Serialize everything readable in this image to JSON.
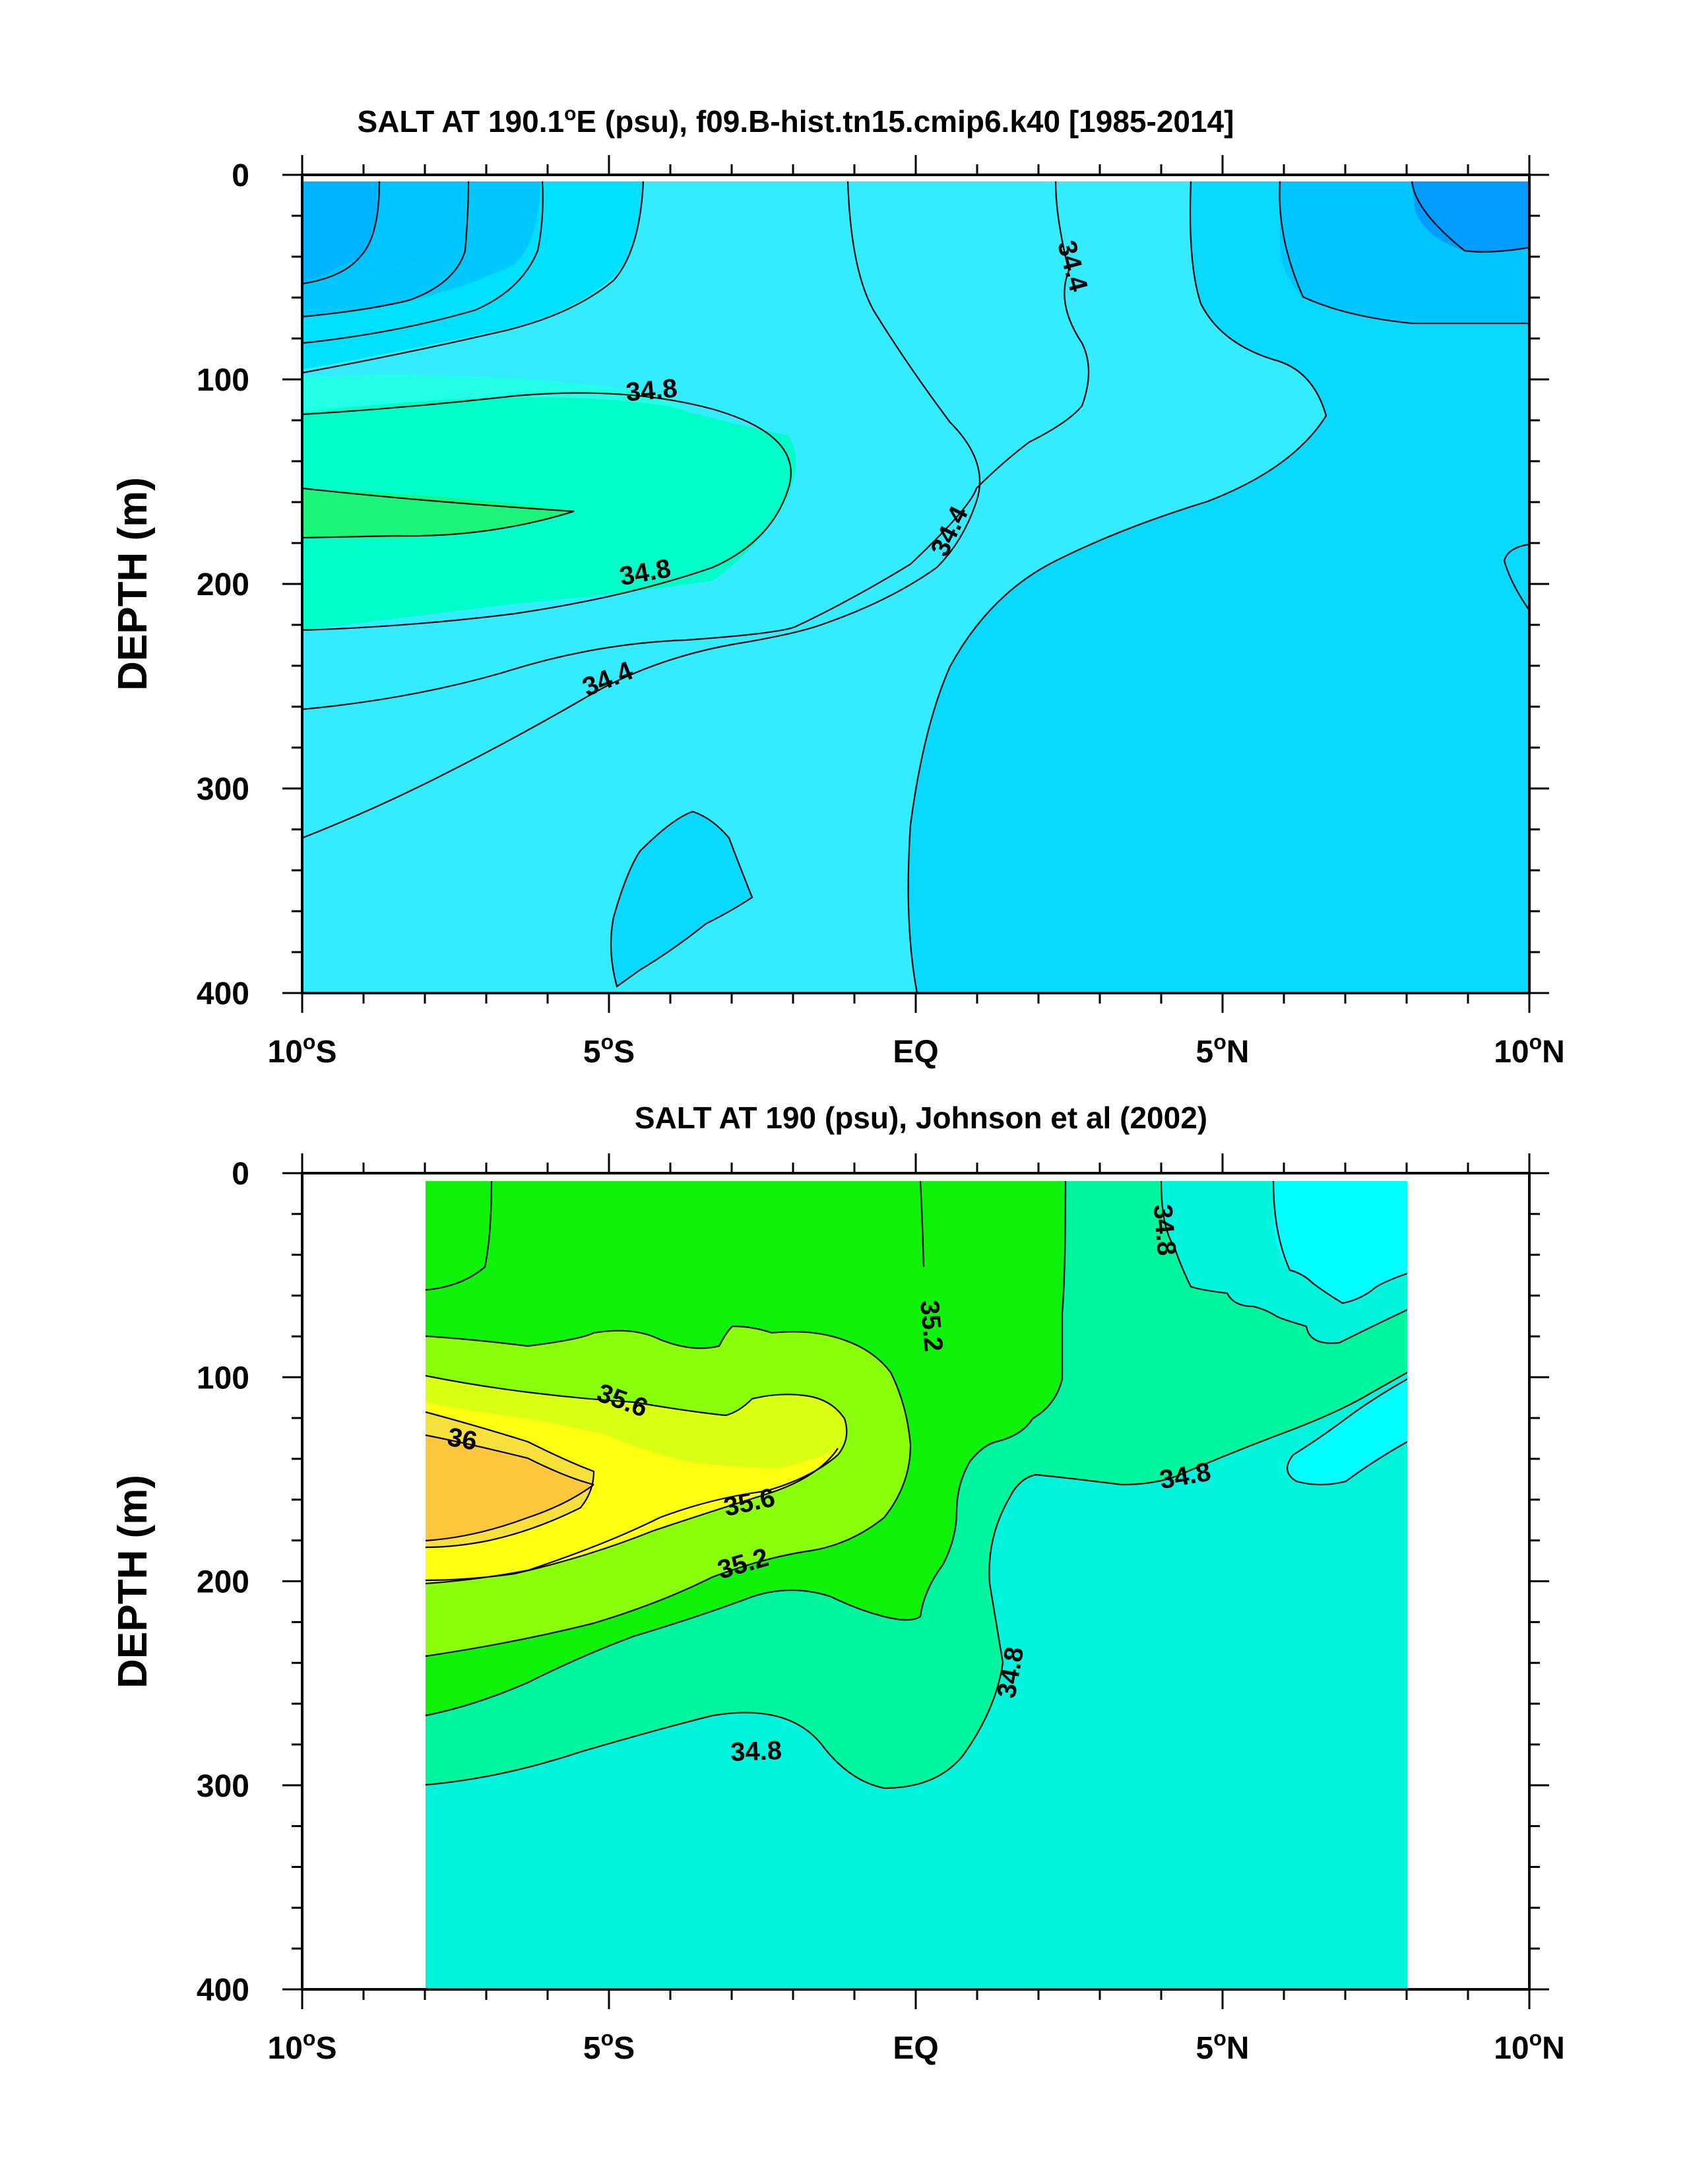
{
  "chart_data": [
    {
      "type": "contour",
      "title_main": "SALT AT 190.1",
      "title_rest": "E (psu), f09.B-hist.tn15.cmip6.k40 [1985-2014]",
      "title_degree": "o",
      "ylabel": "DEPTH (m)",
      "xlim": [
        -10,
        10
      ],
      "ylim": [
        400,
        0
      ],
      "yticks": [
        "0",
        "100",
        "200",
        "300",
        "400"
      ],
      "xticks": [
        {
          "num": "10",
          "sup": "o",
          "hem": "S"
        },
        {
          "num": "5",
          "sup": "o",
          "hem": "S"
        },
        {
          "num": "EQ",
          "sup": "",
          "hem": ""
        },
        {
          "num": "5",
          "sup": "o",
          "hem": "N"
        },
        {
          "num": "10",
          "sup": "o",
          "hem": "N"
        }
      ],
      "data_extent": [
        -10,
        10
      ],
      "contour_levels": [
        34.0,
        34.2,
        34.4,
        34.6,
        34.8,
        35.0
      ],
      "contour_labels": [
        {
          "text": "34.8",
          "lon": -4.3,
          "depth": 107,
          "angle": -5
        },
        {
          "text": "34.8",
          "lon": -4.4,
          "depth": 196,
          "angle": -10
        },
        {
          "text": "34.4",
          "lon": -5.0,
          "depth": 248,
          "angle": -22
        },
        {
          "text": "34.4",
          "lon": 0.6,
          "depth": 175,
          "angle": -64
        },
        {
          "text": "34.4",
          "lon": 2.5,
          "depth": 45,
          "angle": 75
        }
      ]
    },
    {
      "type": "contour",
      "title_main": "SALT AT 190 (psu), Johnson et al (2002)",
      "title_rest": "",
      "title_degree": "",
      "ylabel": "DEPTH (m)",
      "xlim": [
        -10,
        10
      ],
      "ylim": [
        400,
        0
      ],
      "yticks": [
        "0",
        "100",
        "200",
        "300",
        "400"
      ],
      "xticks": [
        {
          "num": "10",
          "sup": "o",
          "hem": "S"
        },
        {
          "num": "5",
          "sup": "o",
          "hem": "S"
        },
        {
          "num": "EQ",
          "sup": "",
          "hem": ""
        },
        {
          "num": "5",
          "sup": "o",
          "hem": "N"
        },
        {
          "num": "10",
          "sup": "o",
          "hem": "N"
        }
      ],
      "data_extent": [
        -8,
        8
      ],
      "contour_levels": [
        34.6,
        34.8,
        35.0,
        35.2,
        35.4,
        35.6,
        35.8,
        36.0
      ],
      "contour_labels": [
        {
          "text": "35.6",
          "lon": -4.8,
          "depth": 113,
          "angle": 20
        },
        {
          "text": "36",
          "lon": -7.4,
          "depth": 132,
          "angle": 10
        },
        {
          "text": "35.6",
          "lon": -2.7,
          "depth": 163,
          "angle": -12
        },
        {
          "text": "35.2",
          "lon": -2.8,
          "depth": 193,
          "angle": -16
        },
        {
          "text": "35.2",
          "lon": 0.2,
          "depth": 75,
          "angle": 85
        },
        {
          "text": "34.8",
          "lon": 4.0,
          "depth": 28,
          "angle": 85
        },
        {
          "text": "34.8",
          "lon": 4.4,
          "depth": 150,
          "angle": -10
        },
        {
          "text": "34.8",
          "lon": 1.6,
          "depth": 245,
          "angle": -80
        },
        {
          "text": "34.8",
          "lon": -2.6,
          "depth": 285,
          "angle": -2
        }
      ]
    }
  ]
}
